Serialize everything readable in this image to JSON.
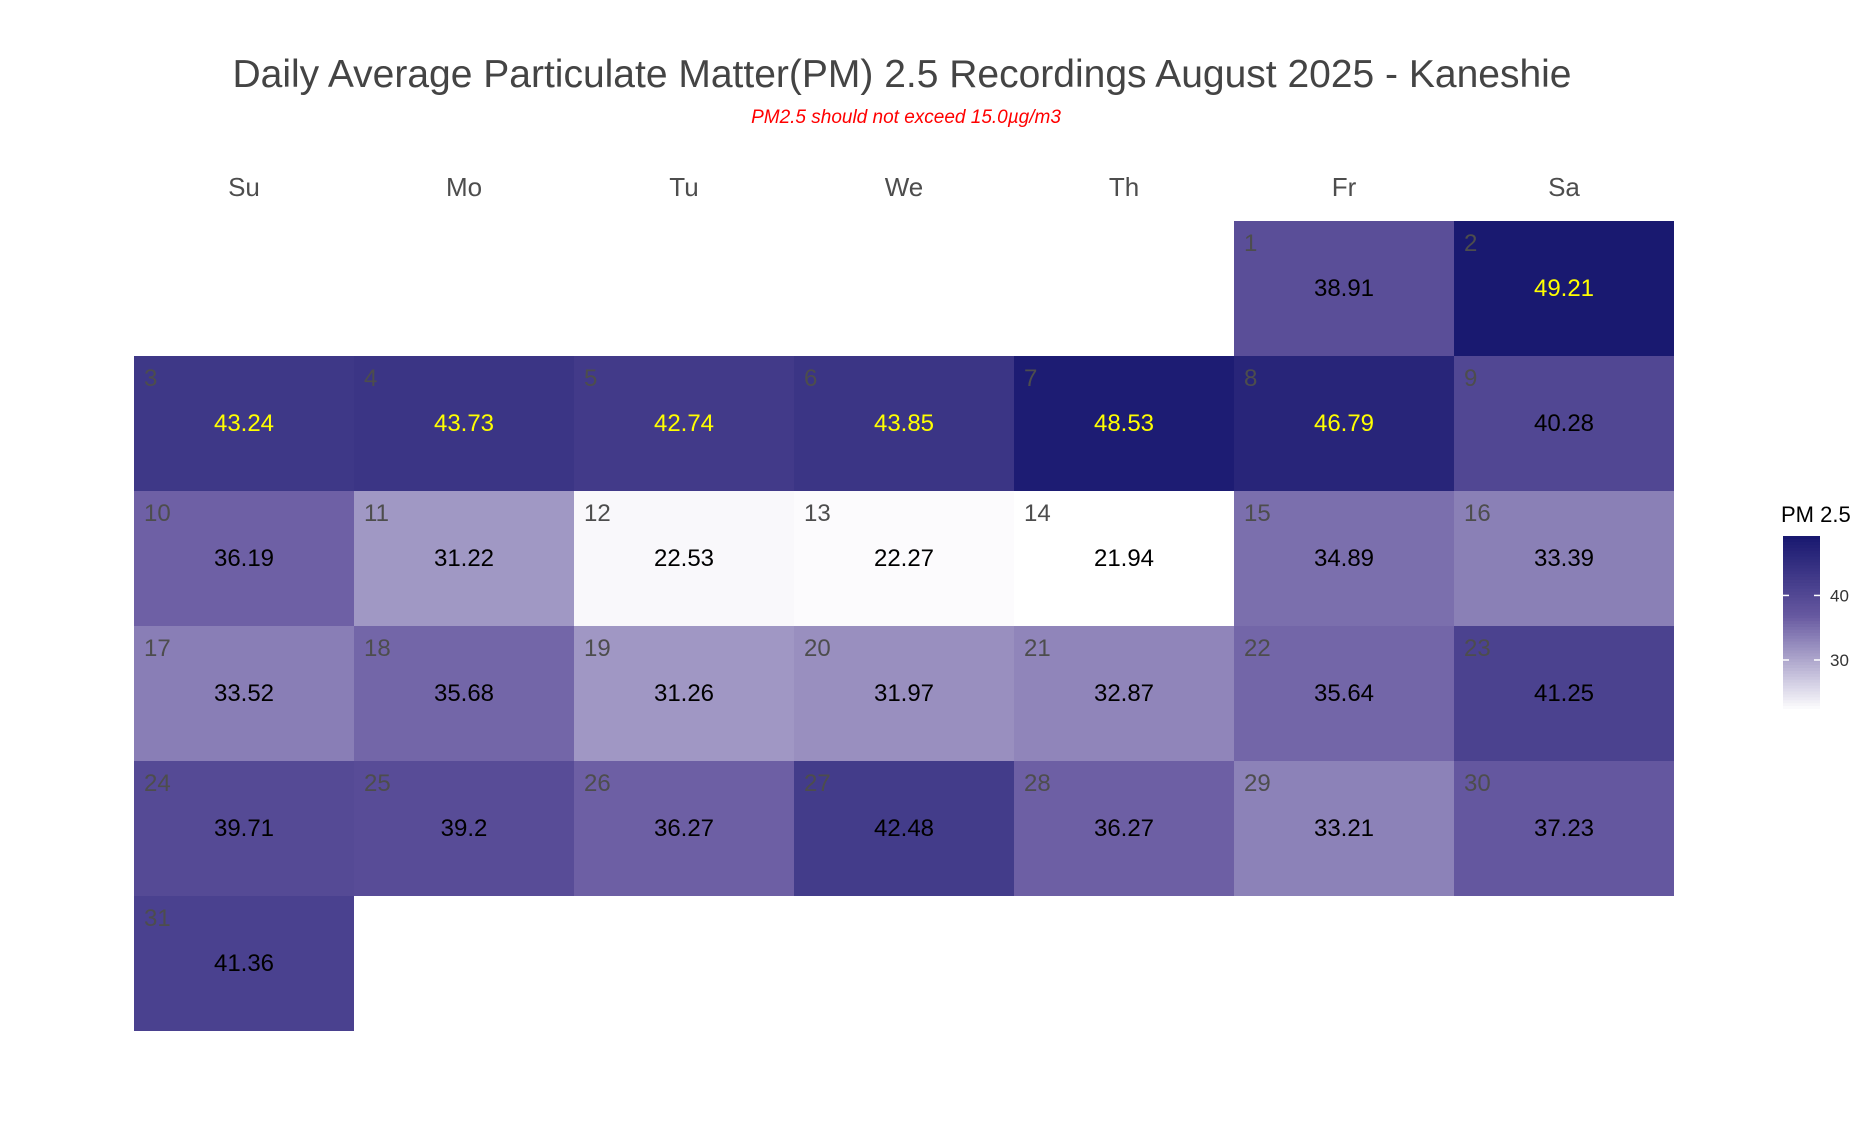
{
  "chart_data": {
    "type": "heatmap",
    "title": "Daily Average Particulate Matter(PM) 2.5 Recordings August 2025 -  Kaneshie",
    "subtitle": "PM2.5 should not exceed 15.0µg/m3",
    "weekdays": [
      "Su",
      "Mo",
      "Tu",
      "We",
      "Th",
      "Fr",
      "Sa"
    ],
    "first_weekday_index": 5,
    "days": [
      {
        "day": "1",
        "value": 38.91
      },
      {
        "day": "2",
        "value": 49.21
      },
      {
        "day": "3",
        "value": 43.24
      },
      {
        "day": "4",
        "value": 43.73
      },
      {
        "day": "5",
        "value": 42.74
      },
      {
        "day": "6",
        "value": 43.85
      },
      {
        "day": "7",
        "value": 48.53
      },
      {
        "day": "8",
        "value": 46.79
      },
      {
        "day": "9",
        "value": 40.28
      },
      {
        "day": "10",
        "value": 36.19
      },
      {
        "day": "11",
        "value": 31.22
      },
      {
        "day": "12",
        "value": 22.53
      },
      {
        "day": "13",
        "value": 22.27
      },
      {
        "day": "14",
        "value": 21.94
      },
      {
        "day": "15",
        "value": 34.89
      },
      {
        "day": "16",
        "value": 33.39
      },
      {
        "day": "17",
        "value": 33.52
      },
      {
        "day": "18",
        "value": 35.68
      },
      {
        "day": "19",
        "value": 31.26
      },
      {
        "day": "20",
        "value": 31.97
      },
      {
        "day": "21",
        "value": 32.87
      },
      {
        "day": "22",
        "value": 35.64
      },
      {
        "day": "23",
        "value": 41.25
      },
      {
        "day": "24",
        "value": 39.71
      },
      {
        "day": "25",
        "value": 39.2
      },
      {
        "day": "26",
        "value": 36.27
      },
      {
        "day": "27",
        "value": 42.48
      },
      {
        "day": "28",
        "value": 36.27
      },
      {
        "day": "29",
        "value": 33.21
      },
      {
        "day": "30",
        "value": 37.23
      },
      {
        "day": "31",
        "value": 41.36
      }
    ],
    "value_label_threshold": 42.5,
    "label_color_low": "#000000",
    "label_color_high": "#ffff00",
    "color_low": "#ffffff",
    "color_high": "#191970",
    "value_range": [
      21.94,
      49.21
    ],
    "legend": {
      "title": "PM 2.5",
      "ticks": [
        "30",
        "40"
      ],
      "position": "right"
    }
  }
}
